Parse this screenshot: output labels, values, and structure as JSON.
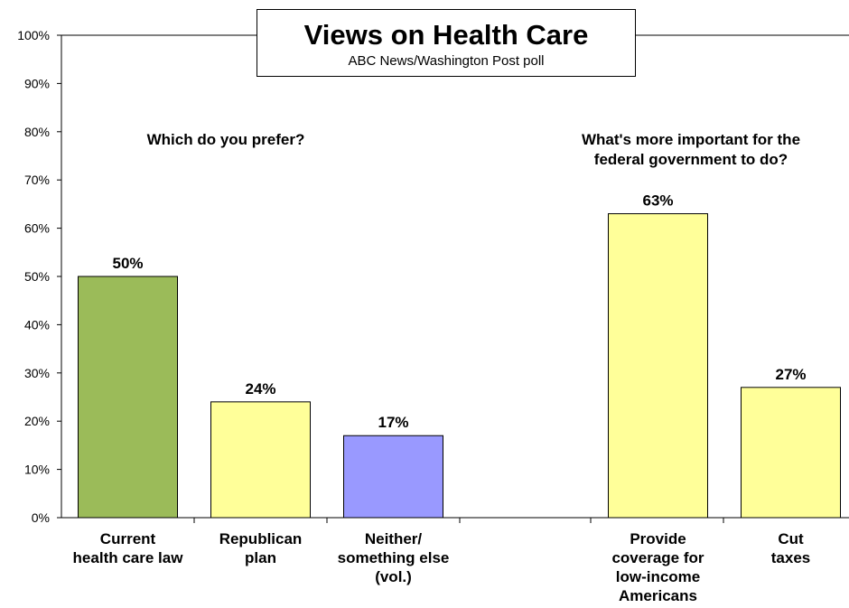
{
  "chart_data": {
    "type": "bar",
    "title": "Views on Health Care",
    "subtitle": "ABC News/Washington  Post poll",
    "ylim": [
      0,
      100
    ],
    "yticks": [
      "0%",
      "10%",
      "20%",
      "30%",
      "40%",
      "50%",
      "60%",
      "70%",
      "80%",
      "90%",
      "100%"
    ],
    "grid": false,
    "groups": [
      {
        "question_lines": [
          "Which do you prefer?"
        ],
        "bars": [
          {
            "label_lines": [
              "Current",
              "health care law"
            ],
            "value": 50,
            "value_label": "50%",
            "color": "#9bbb59"
          },
          {
            "label_lines": [
              "Republican",
              "plan"
            ],
            "value": 24,
            "value_label": "24%",
            "color": "#ffff99"
          },
          {
            "label_lines": [
              "Neither/",
              "something else",
              "(vol.)"
            ],
            "value": 17,
            "value_label": "17%",
            "color": "#9999ff"
          }
        ]
      },
      {
        "question_lines": [
          "What's more important for the",
          "federal government to do?"
        ],
        "bars": [
          {
            "label_lines": [
              "Provide",
              "coverage for",
              "low-income",
              "Americans"
            ],
            "value": 63,
            "value_label": "63%",
            "color": "#ffff99"
          },
          {
            "label_lines": [
              "Cut",
              "taxes"
            ],
            "value": 27,
            "value_label": "27%",
            "color": "#ffff99"
          }
        ]
      }
    ]
  }
}
